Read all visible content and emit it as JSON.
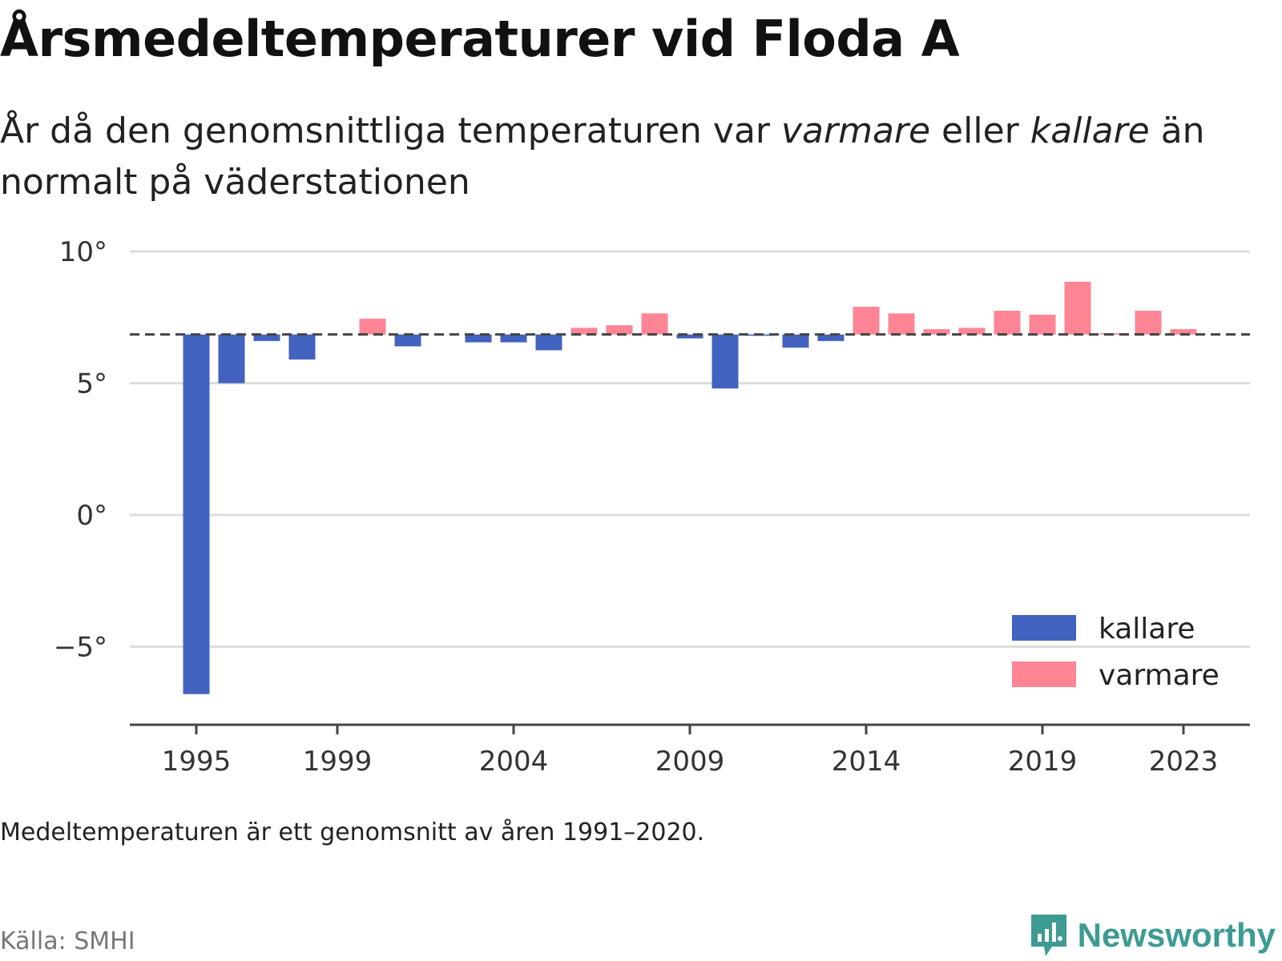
{
  "header": {
    "title": "Årsmedeltemperaturer vid Floda A",
    "subtitle_part1": "År då den genomsnittliga temperaturen var ",
    "subtitle_warmer": "varmare",
    "subtitle_part2": " eller ",
    "subtitle_colder": "kallare",
    "subtitle_part3": " än normalt på väderstationen"
  },
  "footer": {
    "note": "Medeltemperaturen är ett genomsnitt av åren 1991–2020.",
    "source": "Källa: SMHI",
    "brand": "Newsworthy"
  },
  "colors": {
    "colder": "#4262bf",
    "warmer": "#ff8595",
    "grid": "#dddddd",
    "baseline": "#444444",
    "brand": "#3d9b93"
  },
  "icons": {
    "brand_logo": "newsworthy-logo-icon"
  },
  "chart_data": {
    "type": "bar",
    "title": "Årsmedeltemperaturer vid Floda A",
    "xlabel": "",
    "ylabel": "",
    "normal": 6.85,
    "ylim": [
      -7.8,
      10.2
    ],
    "yticks": [
      10,
      5,
      0,
      -5
    ],
    "ytick_labels": [
      "10°",
      "5°",
      "0°",
      "−5°"
    ],
    "xticks": [
      1995,
      1999,
      2004,
      2009,
      2014,
      2019,
      2023
    ],
    "xtick_labels": [
      "1995",
      "1999",
      "2004",
      "2009",
      "2014",
      "2019",
      "2023"
    ],
    "grid": true,
    "legend": {
      "position": "bottom-right",
      "entries": [
        {
          "label": "kallare",
          "color": "#4262bf"
        },
        {
          "label": "varmare",
          "color": "#ff8595"
        }
      ]
    },
    "x": [
      1995,
      1996,
      1997,
      1998,
      1999,
      2000,
      2001,
      2002,
      2003,
      2004,
      2005,
      2006,
      2007,
      2008,
      2009,
      2010,
      2011,
      2012,
      2013,
      2014,
      2015,
      2016,
      2017,
      2018,
      2019,
      2020,
      2021,
      2022,
      2023
    ],
    "values": [
      -6.8,
      5.0,
      6.6,
      5.9,
      null,
      7.45,
      6.4,
      null,
      6.55,
      6.55,
      6.25,
      7.1,
      7.2,
      7.65,
      6.7,
      4.8,
      6.8,
      6.35,
      6.6,
      7.9,
      7.65,
      7.05,
      7.1,
      7.75,
      7.6,
      8.85,
      6.9,
      7.75,
      7.05
    ]
  }
}
